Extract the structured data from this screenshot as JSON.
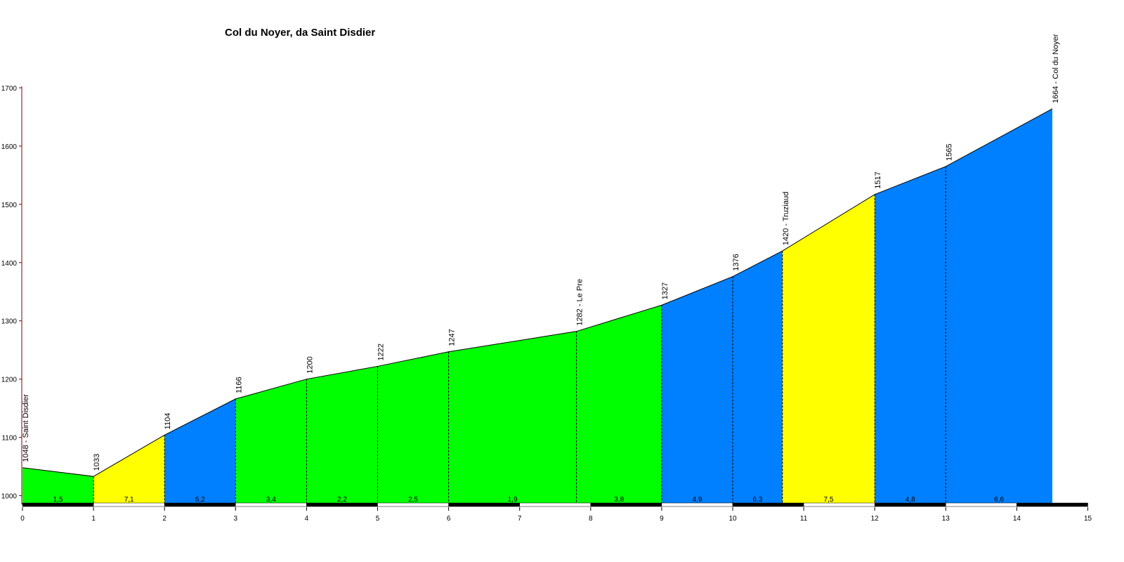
{
  "chart_data": {
    "type": "area",
    "title": "Col du Noyer, da Saint Disdier",
    "xlabel": "",
    "ylabel": "",
    "xlim": [
      0,
      15
    ],
    "ylim": [
      985,
      1700
    ],
    "x_ticks": [
      0,
      1,
      2,
      3,
      4,
      5,
      6,
      7,
      8,
      9,
      10,
      11,
      12,
      13,
      14,
      15
    ],
    "y_ticks": [
      1000,
      1100,
      1200,
      1300,
      1400,
      1500,
      1600,
      1700
    ],
    "profile": [
      {
        "km": 0,
        "alt": 1048,
        "label": "1048 - Saint Disdier"
      },
      {
        "km": 1,
        "alt": 1033,
        "label": "1033"
      },
      {
        "km": 2,
        "alt": 1104,
        "label": "1104"
      },
      {
        "km": 3,
        "alt": 1166,
        "label": "1166"
      },
      {
        "km": 4,
        "alt": 1200,
        "label": "1200"
      },
      {
        "km": 5,
        "alt": 1222,
        "label": "1222"
      },
      {
        "km": 6,
        "alt": 1247,
        "label": "1247"
      },
      {
        "km": 7.8,
        "alt": 1282,
        "label": "1282 - Le Pre"
      },
      {
        "km": 9,
        "alt": 1327,
        "label": "1327"
      },
      {
        "km": 10,
        "alt": 1376,
        "label": "1376"
      },
      {
        "km": 10.7,
        "alt": 1420,
        "label": "1420 - Truziaud"
      },
      {
        "km": 12,
        "alt": 1517,
        "label": "1517"
      },
      {
        "km": 13,
        "alt": 1565,
        "label": "1565"
      },
      {
        "km": 14.5,
        "alt": 1664,
        "label": "1664 - Col du Noyer"
      }
    ],
    "segments": [
      {
        "from": 0,
        "to": 1,
        "gradient": "1,5",
        "color": "#00ff00"
      },
      {
        "from": 1,
        "to": 2,
        "gradient": "7,1",
        "color": "#ffff00"
      },
      {
        "from": 2,
        "to": 3,
        "gradient": "6,2",
        "color": "#0080ff"
      },
      {
        "from": 3,
        "to": 4,
        "gradient": "3,4",
        "color": "#00ff00"
      },
      {
        "from": 4,
        "to": 5,
        "gradient": "2,2",
        "color": "#00ff00"
      },
      {
        "from": 5,
        "to": 6,
        "gradient": "2,5",
        "color": "#00ff00"
      },
      {
        "from": 6,
        "to": 7.8,
        "gradient": "1,9",
        "color": "#00ff00"
      },
      {
        "from": 7.8,
        "to": 9,
        "gradient": "3,8",
        "color": "#00ff00"
      },
      {
        "from": 9,
        "to": 10,
        "gradient": "4,9",
        "color": "#0080ff"
      },
      {
        "from": 10,
        "to": 10.7,
        "gradient": "6,3",
        "color": "#0080ff"
      },
      {
        "from": 10.7,
        "to": 12,
        "gradient": "7,5",
        "color": "#ffff00"
      },
      {
        "from": 12,
        "to": 13,
        "gradient": "4,8",
        "color": "#0080ff"
      },
      {
        "from": 13,
        "to": 14.5,
        "gradient": "6,6",
        "color": "#0080ff"
      }
    ],
    "colors": {
      "green": "#00ff00",
      "yellow": "#ffff00",
      "blue": "#0080ff",
      "axis": "#800000",
      "bar_dark": "#000000",
      "bar_light": "#ffffff"
    },
    "grid": false,
    "legend": "none"
  }
}
